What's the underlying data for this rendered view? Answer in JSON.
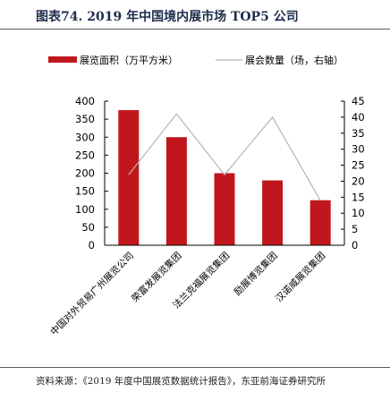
{
  "header": {
    "title": "图表74. 2019 年中国境内展市场 TOP5 公司"
  },
  "footer": {
    "source": "资料来源：《2019 年度中国展览数据统计报告》，东亚前海证券研究所"
  },
  "colors": {
    "bar": "#c0171d",
    "line": "#b4b4b4",
    "axis": "#000000"
  },
  "chart_data": {
    "type": "bar",
    "categories": [
      "中国对外贸易广州展览公司",
      "荣富发展览集团",
      "法兰克福展览集团",
      "励展博览集团",
      "汉诺威展览集团"
    ],
    "series": [
      {
        "name": "展览面积（万平方米）",
        "type": "bar",
        "axis": "left",
        "values": [
          375,
          300,
          200,
          180,
          125
        ]
      },
      {
        "name": "展会数量（场，右轴）",
        "type": "line",
        "axis": "right",
        "values": [
          22,
          41,
          22,
          40,
          14
        ]
      }
    ],
    "ylim": [
      0,
      400
    ],
    "y_ticks": [
      0,
      50,
      100,
      150,
      200,
      250,
      300,
      350,
      400
    ],
    "y2lim": [
      0,
      45
    ],
    "y2_ticks": [
      0,
      5,
      10,
      15,
      20,
      25,
      30,
      35,
      40,
      45
    ],
    "grid": false,
    "legend": "top"
  }
}
